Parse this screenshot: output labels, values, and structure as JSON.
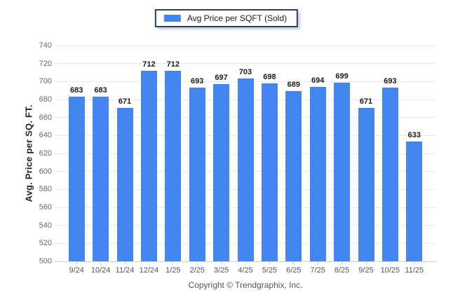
{
  "legend": {
    "label": "Avg Price per SQFT (Sold)"
  },
  "footer": {
    "text": "Copyright © Trendgraphix, Inc."
  },
  "colors": {
    "bar": "#4386f2",
    "legend_border": "#2e4156",
    "gridline": "#e9e9e9",
    "axis_line": "#d0d0d0",
    "y_tick_label": "#666666",
    "x_tick_label": "#555555",
    "value_label": "#1a1a1a",
    "footer_text": "#555555"
  },
  "chart_data": {
    "type": "bar",
    "title": "Avg Price per SQFT (Sold)",
    "categories": [
      "9/24",
      "10/24",
      "11/24",
      "12/24",
      "1/25",
      "2/25",
      "3/25",
      "4/25",
      "5/25",
      "6/25",
      "7/25",
      "8/25",
      "9/25",
      "10/25",
      "11/25"
    ],
    "values": [
      683,
      683,
      671,
      712,
      712,
      693,
      697,
      703,
      698,
      689,
      694,
      699,
      671,
      693,
      633
    ],
    "xlabel": "",
    "ylabel": "Avg. Price per SQ. FT.",
    "ylim": [
      500,
      740
    ],
    "ytick_step": 20,
    "grid": "horizontal",
    "legend_position": "top-center",
    "data_labels": true
  }
}
